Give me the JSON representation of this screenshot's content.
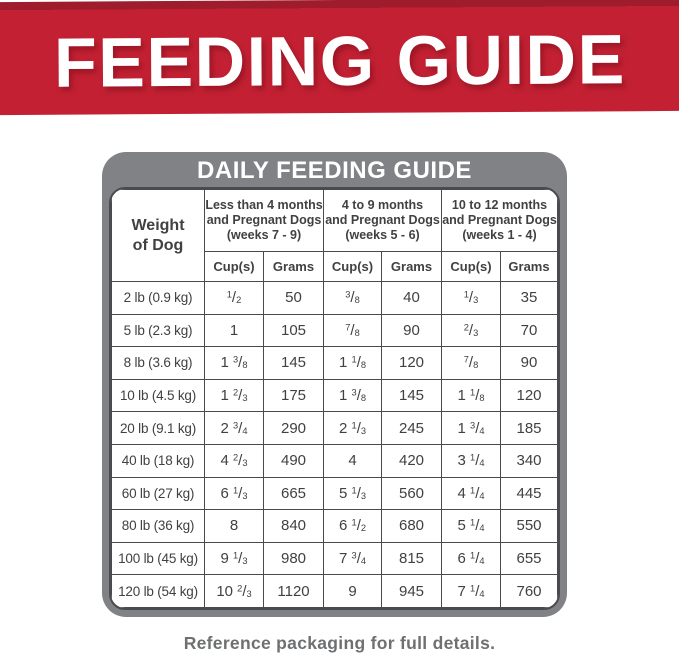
{
  "banner": {
    "title": "FEEDING GUIDE",
    "bg_color": "#c32133",
    "top_strip_color": "#9e1c2b",
    "text_color": "#ffffff"
  },
  "guide": {
    "title": "DAILY FEEDING GUIDE",
    "header_bg_color": "#808285",
    "border_color": "#4a4b4e",
    "text_color": "#414042",
    "weight_header": "Weight\nof Dog",
    "column_groups": [
      "Less than 4 months\nand Pregnant Dogs\n(weeks 7 - 9)",
      "4 to 9 months\nand Pregnant Dogs\n(weeks 5 - 6)",
      "10 to 12 months\nand Pregnant Dogs\n(weeks 1 - 4)"
    ],
    "unit_headers": {
      "cups": "Cup(s)",
      "grams": "Grams"
    },
    "rows": [
      {
        "weight": "2 lb (0.9 kg)",
        "cups1": "1/2",
        "grams1": "50",
        "cups2": "3/8",
        "grams2": "40",
        "cups3": "1/3",
        "grams3": "35"
      },
      {
        "weight": "5 lb (2.3 kg)",
        "cups1": "1",
        "grams1": "105",
        "cups2": "7/8",
        "grams2": "90",
        "cups3": "2/3",
        "grams3": "70"
      },
      {
        "weight": "8 lb (3.6 kg)",
        "cups1": "1 3/8",
        "grams1": "145",
        "cups2": "1 1/8",
        "grams2": "120",
        "cups3": "7/8",
        "grams3": "90"
      },
      {
        "weight": "10 lb (4.5 kg)",
        "cups1": "1 2/3",
        "grams1": "175",
        "cups2": "1 3/8",
        "grams2": "145",
        "cups3": "1 1/8",
        "grams3": "120"
      },
      {
        "weight": "20 lb (9.1 kg)",
        "cups1": "2 3/4",
        "grams1": "290",
        "cups2": "2 1/3",
        "grams2": "245",
        "cups3": "1 3/4",
        "grams3": "185"
      },
      {
        "weight": "40 lb (18 kg)",
        "cups1": "4 2/3",
        "grams1": "490",
        "cups2": "4",
        "grams2": "420",
        "cups3": "3 1/4",
        "grams3": "340"
      },
      {
        "weight": "60 lb (27 kg)",
        "cups1": "6 1/3",
        "grams1": "665",
        "cups2": "5 1/3",
        "grams2": "560",
        "cups3": "4 1/4",
        "grams3": "445"
      },
      {
        "weight": "80 lb (36 kg)",
        "cups1": "8",
        "grams1": "840",
        "cups2": "6 1/2",
        "grams2": "680",
        "cups3": "5 1/4",
        "grams3": "550"
      },
      {
        "weight": "100 lb (45 kg)",
        "cups1": "9 1/3",
        "grams1": "980",
        "cups2": "7 3/4",
        "grams2": "815",
        "cups3": "6 1/4",
        "grams3": "655"
      },
      {
        "weight": "120 lb (54 kg)",
        "cups1": "10 2/3",
        "grams1": "1120",
        "cups2": "9",
        "grams2": "945",
        "cups3": "7 1/4",
        "grams3": "760"
      }
    ]
  },
  "footer": {
    "note": "Reference packaging for full details."
  }
}
